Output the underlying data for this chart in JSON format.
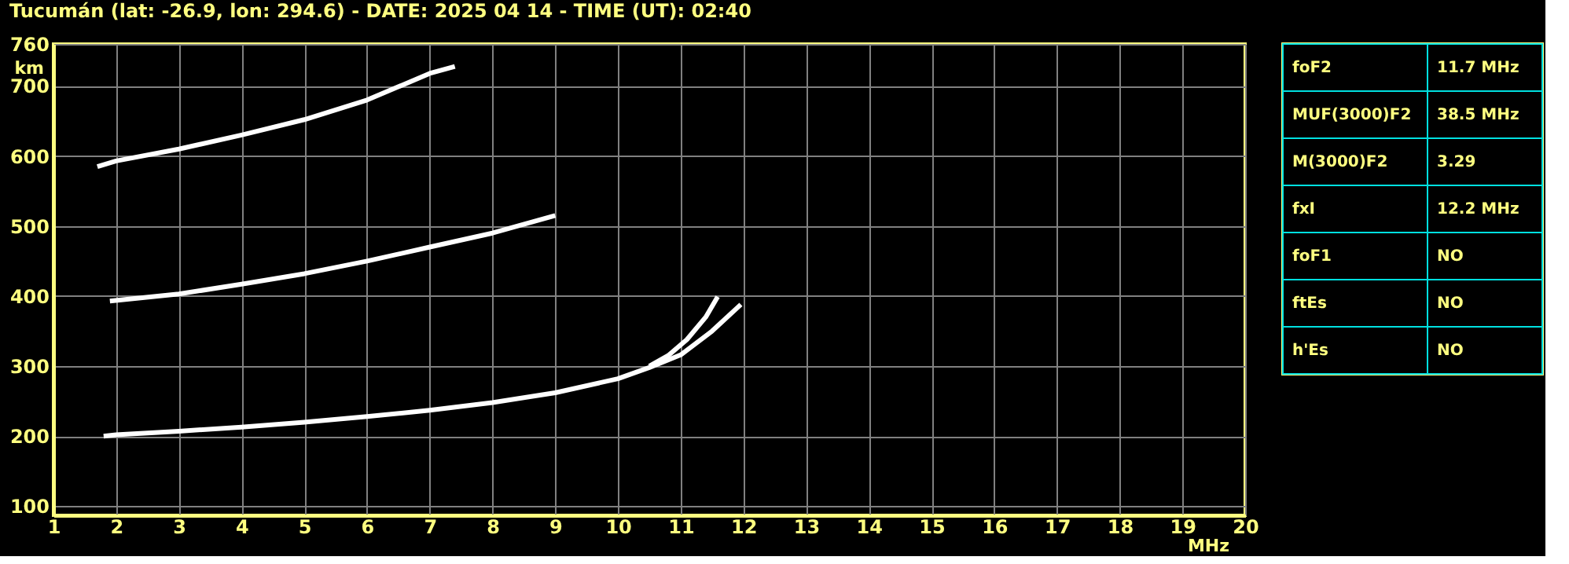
{
  "chart_data": [
    {
      "type": "line",
      "title": "Tucumán (lat: -26.9, lon: 294.6) - DATE: 2025 04 14 - TIME (UT): 02:40",
      "xlabel": "MHz",
      "ylabel": "km",
      "xlim": [
        1,
        20
      ],
      "xticks": [
        1,
        2,
        3,
        4,
        5,
        6,
        7,
        8,
        9,
        10,
        11,
        12,
        13,
        14,
        15,
        16,
        17,
        18,
        19,
        20
      ],
      "ylim": [
        87,
        760
      ],
      "yticks": [
        100,
        200,
        300,
        400,
        500,
        600,
        700,
        760
      ],
      "grid": true,
      "legend": false,
      "marker": "none",
      "line_style": "solid",
      "series": [
        {
          "color": "#ffffff",
          "x": [
            1.8,
            2,
            3,
            4,
            5,
            6,
            7,
            8,
            9,
            10,
            10.5,
            11,
            11.5,
            11.96
          ],
          "values": [
            200,
            202,
            207,
            213,
            220,
            228,
            237,
            248,
            262,
            282,
            298,
            316,
            350,
            388
          ]
        },
        {
          "color": "#ffffff",
          "x": [
            10.5,
            10.8,
            11.1,
            11.4,
            11.59
          ],
          "values": [
            300,
            315,
            338,
            370,
            399
          ]
        },
        {
          "color": "#ffffff",
          "x": [
            1.9,
            3,
            4,
            5,
            6,
            7,
            8,
            9
          ],
          "values": [
            393,
            403,
            417,
            432,
            450,
            470,
            490,
            515
          ]
        },
        {
          "color": "#ffffff",
          "x": [
            1.7,
            2,
            3,
            4,
            5,
            6,
            7,
            7.4
          ],
          "values": [
            585,
            593,
            610,
            630,
            652,
            680,
            718,
            728
          ]
        }
      ]
    },
    {
      "type": "other",
      "annotations": [
        "foF2",
        "11.7 MHz",
        "MUF(3000)F2",
        "38.5 MHz",
        "M(3000)F2",
        "3.29",
        "fxI",
        "12.2 MHz",
        "foF1",
        "NO",
        "ftEs",
        "NO",
        "h'Es",
        "NO"
      ]
    }
  ]
}
